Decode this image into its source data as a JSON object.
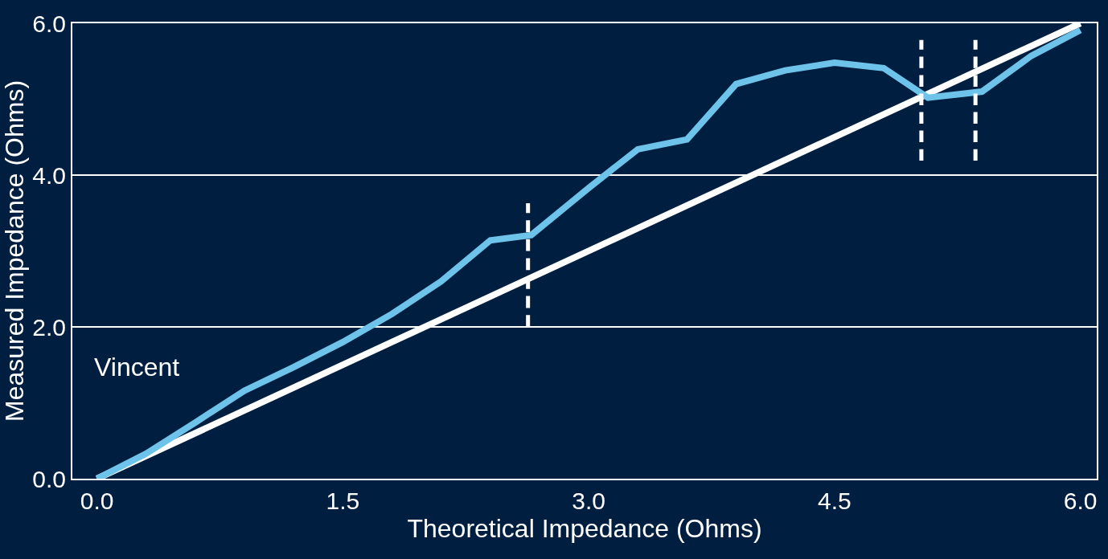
{
  "chart_data": {
    "type": "line",
    "xlabel": "Theoretical Impedance (Ohms)",
    "ylabel": "Measured Impedance (Ohms)",
    "xlim": [
      -0.15,
      6.1
    ],
    "xticks": [
      {
        "value": 0,
        "label": "0.0"
      },
      {
        "value": 1.5,
        "label": "1.5"
      },
      {
        "value": 3,
        "label": "3.0"
      },
      {
        "value": 4.5,
        "label": "4.5"
      },
      {
        "value": 6,
        "label": "6.0"
      }
    ],
    "ylim": [
      0,
      6
    ],
    "yticks": [
      {
        "value": 0,
        "label": "0.0"
      },
      {
        "value": 2,
        "label": "2.0"
      },
      {
        "value": 4,
        "label": "4.0"
      },
      {
        "value": 6,
        "label": "6.0"
      }
    ],
    "grid": "y",
    "marker": "none",
    "series": [
      {
        "color": "#ffffff",
        "x": [
          0,
          6
        ],
        "values": [
          0,
          6
        ]
      },
      {
        "color": "#6ec3ea",
        "x": [
          0,
          0.3,
          0.6,
          0.9,
          1.2,
          1.5,
          1.8,
          2.1,
          2.4,
          2.65,
          3.0,
          3.3,
          3.6,
          3.9,
          4.2,
          4.5,
          4.8,
          5.07,
          5.4,
          5.7,
          6.0
        ],
        "values": [
          0,
          0.33,
          0.74,
          1.16,
          1.47,
          1.8,
          2.17,
          2.6,
          3.14,
          3.21,
          3.83,
          4.34,
          4.47,
          5.2,
          5.38,
          5.48,
          5.41,
          5.02,
          5.1,
          5.57,
          5.91
        ]
      },
      {
        "color": "#ffffff",
        "line_style": "dashed",
        "x": [
          2.63,
          2.63
        ],
        "values": [
          2.0,
          3.63
        ]
      },
      {
        "color": "#ffffff",
        "line_style": "dashed",
        "x": [
          5.03,
          5.03
        ],
        "values": [
          4.19,
          5.78
        ]
      },
      {
        "color": "#ffffff",
        "line_style": "dashed",
        "x": [
          5.36,
          5.36
        ],
        "values": [
          4.19,
          5.78
        ]
      }
    ],
    "annotations": [
      "Vincent"
    ]
  }
}
